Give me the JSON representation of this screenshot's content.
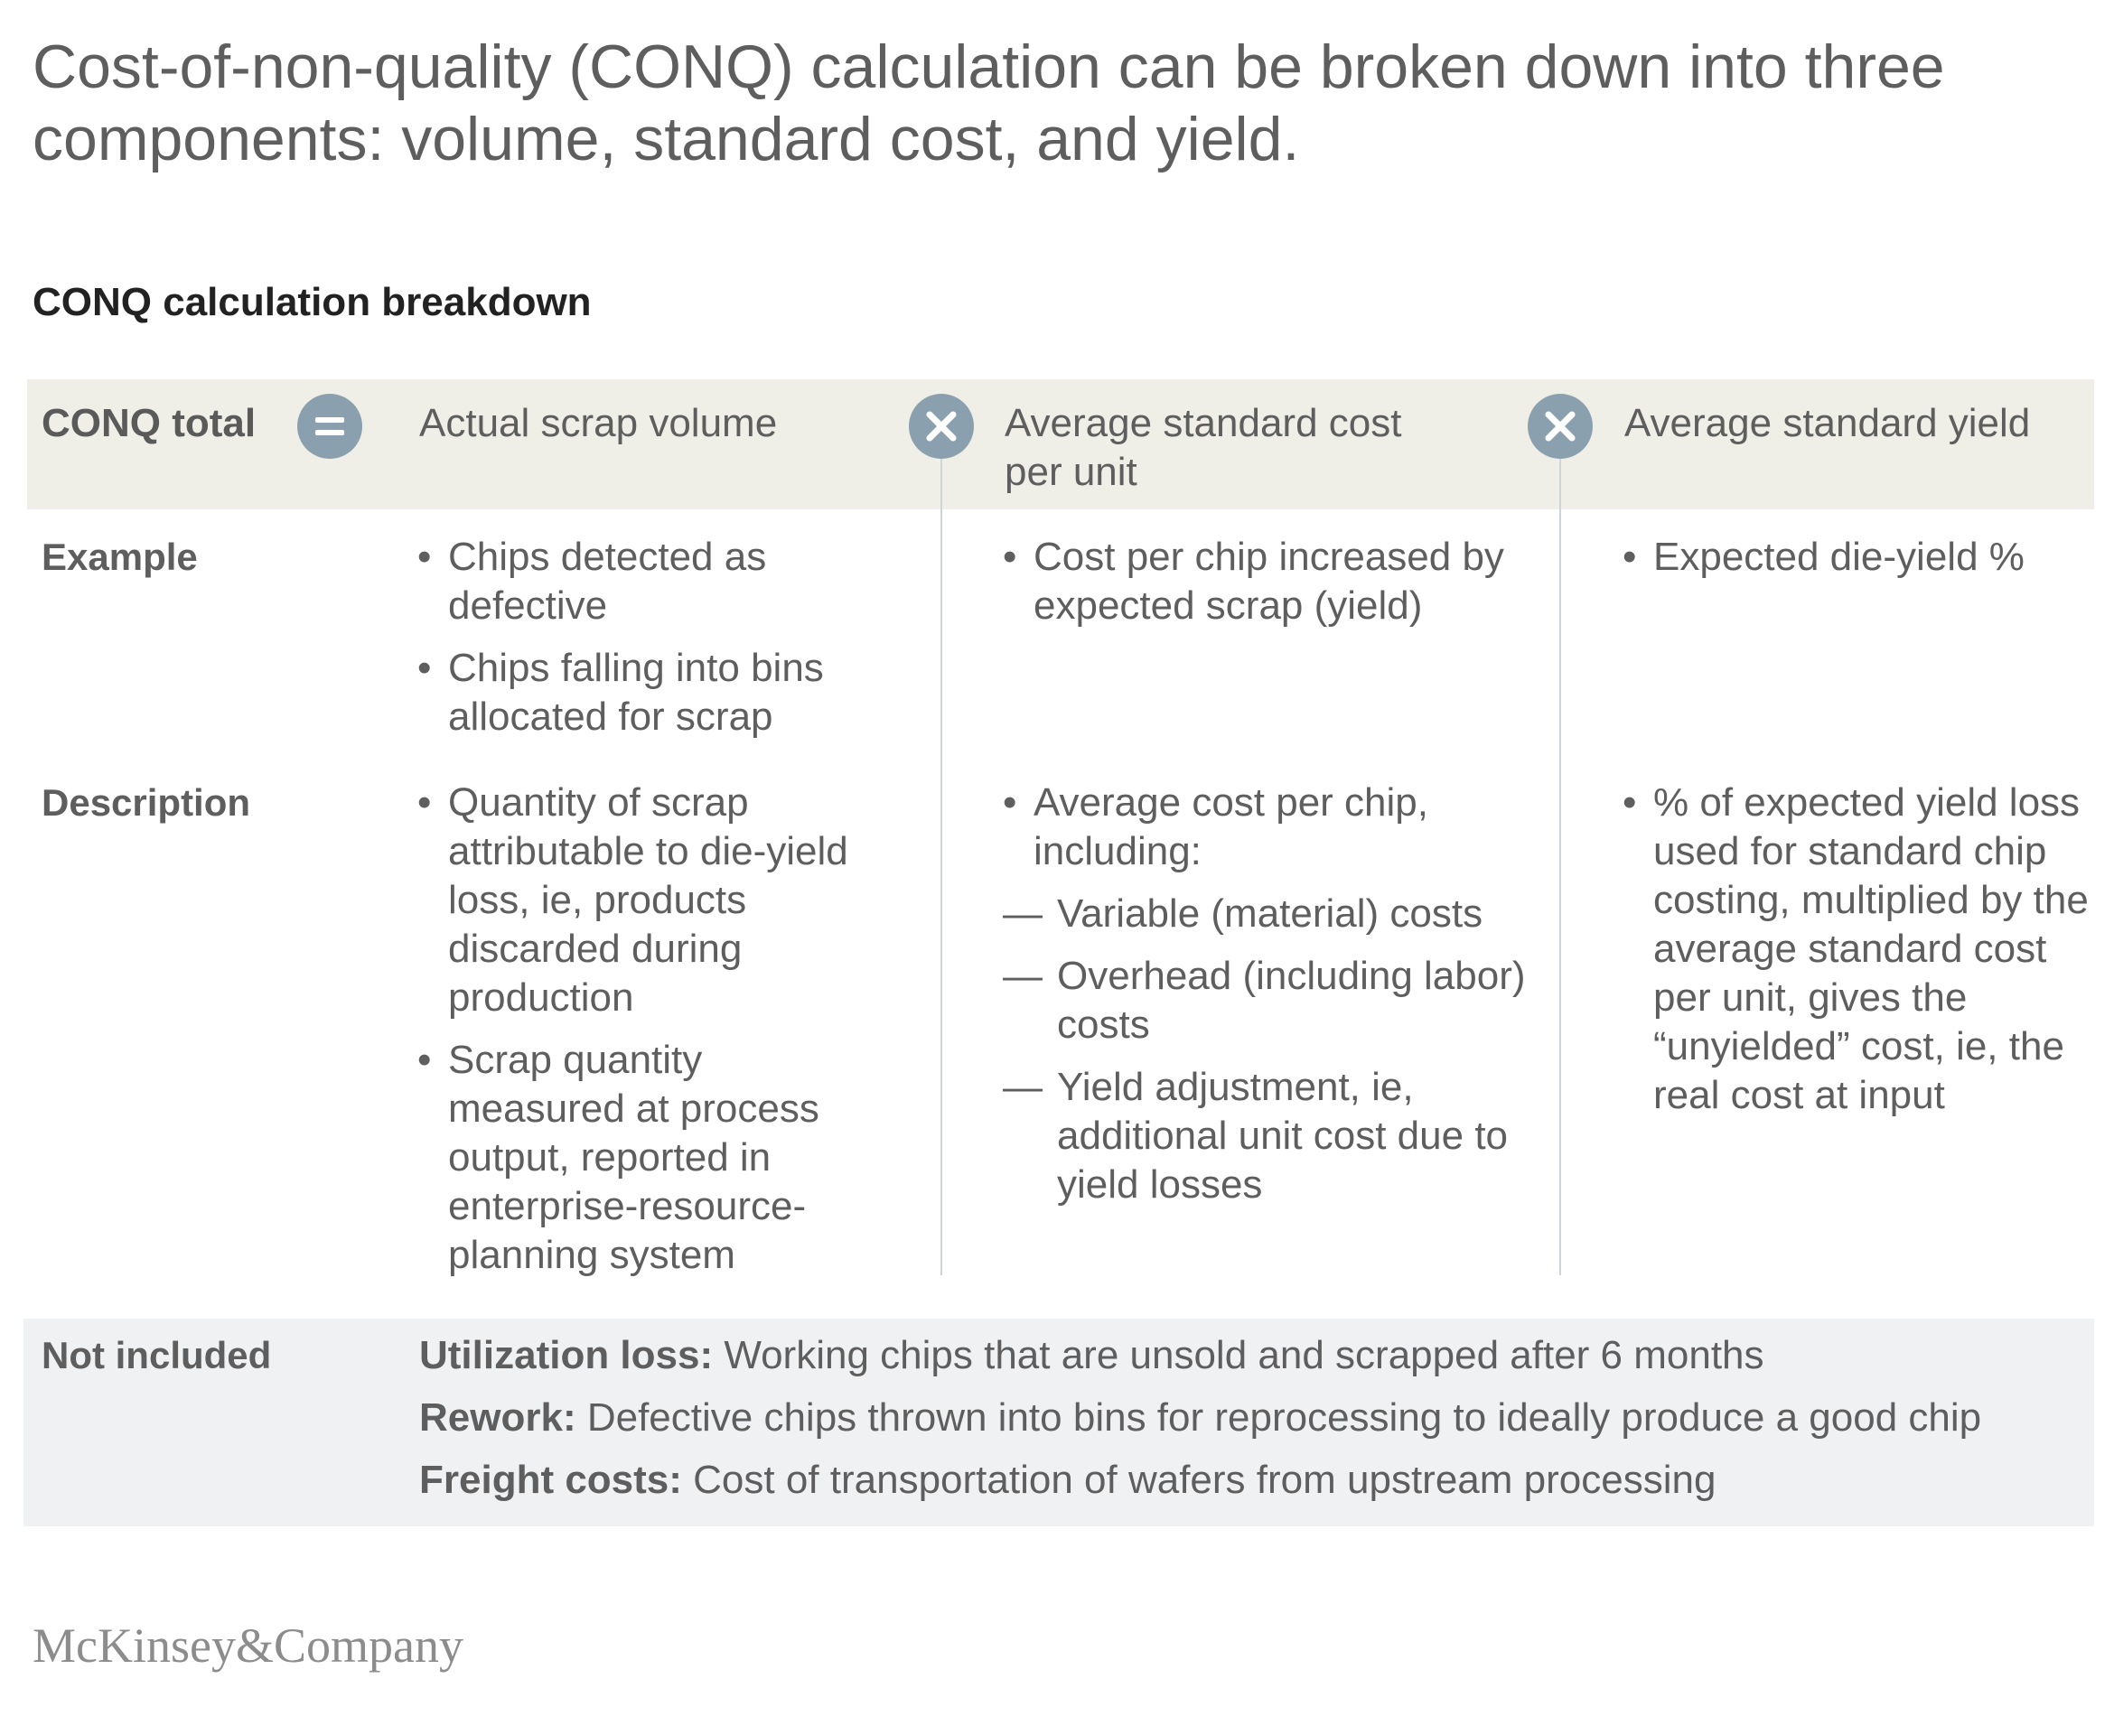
{
  "title": "Cost-of-non-quality (CONQ) calculation can be broken down into three components: volume, standard cost, and yield.",
  "subtitle": "CONQ calculation breakdown",
  "header": {
    "total_label": "CONQ total",
    "operators": [
      "equals-icon",
      "times-icon",
      "times-icon"
    ],
    "columns": [
      "Actual scrap volume",
      "Average standard cost per unit",
      "Average standard yield"
    ]
  },
  "rows": {
    "example": {
      "label": "Example",
      "col1": [
        "Chips detected as defective",
        "Chips falling into bins allocated for scrap"
      ],
      "col2": [
        "Cost per chip increased by expected scrap (yield)"
      ],
      "col3": [
        "Expected die-yield %"
      ]
    },
    "description": {
      "label": "Description",
      "col1": [
        "Quantity of scrap attributable to die-yield loss, ie, products discarded during production",
        "Scrap quantity measured at process output, reported in enterprise-resource-planning system"
      ],
      "col2": {
        "intro": "Average cost per chip, including:",
        "subitems": [
          "Variable (material) costs",
          "Overhead (including labor) costs",
          "Yield adjustment, ie, additional unit cost due to yield losses"
        ]
      },
      "col3": [
        "% of expected yield loss used for standard chip costing, multiplied by the average standard cost per unit, gives the “unyielded” cost, ie, the real cost at input"
      ]
    }
  },
  "not_included": {
    "label": "Not included",
    "items": [
      {
        "term": "Utilization loss:",
        "text": " Working chips that are unsold and scrapped after 6 months"
      },
      {
        "term": "Rework:",
        "text": " Defective chips thrown into bins for reprocessing to ideally produce a good chip"
      },
      {
        "term": "Freight costs:",
        "text": " Cost of transportation of wafers from upstream processing"
      }
    ]
  },
  "logo": "McKinsey&Company",
  "colors": {
    "operator_circle": "#8ba0ae",
    "header_band": "#efefe8",
    "not_included_band": "#f0f1f3"
  }
}
